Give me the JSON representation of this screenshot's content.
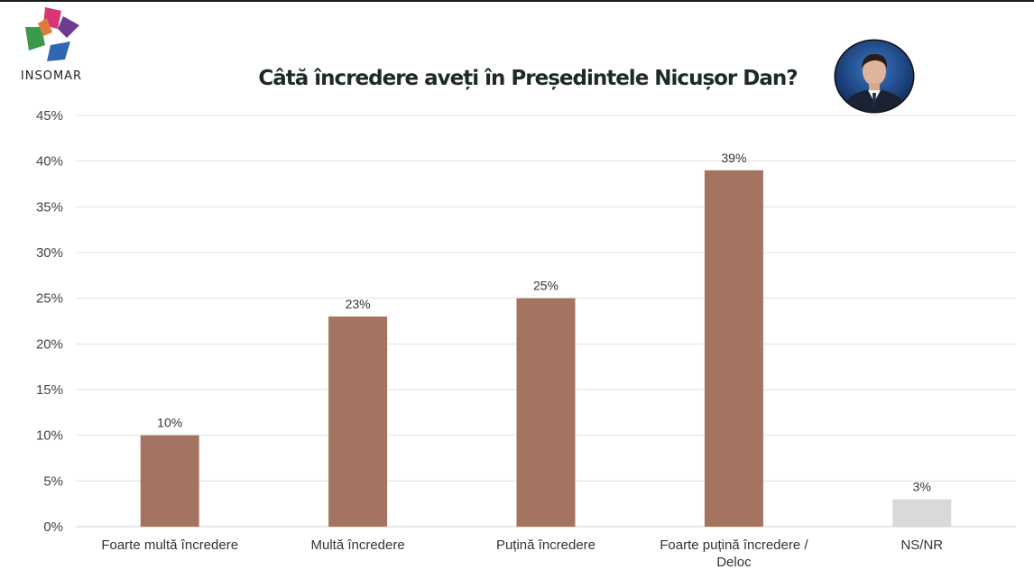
{
  "brand": {
    "name": "INSOMAR",
    "colors": [
      "#d6357a",
      "#6d3c8e",
      "#3a9a4a",
      "#2f67b2"
    ]
  },
  "avatar": {
    "icon": "person-portrait-icon"
  },
  "chart_data": {
    "type": "bar",
    "title": "Câtă încredere aveți în Președintele Nicușor Dan?",
    "xlabel": "",
    "ylabel": "",
    "ylim": [
      0,
      45
    ],
    "yticks": [
      "0%",
      "5%",
      "10%",
      "15%",
      "20%",
      "25%",
      "30%",
      "35%",
      "40%",
      "45%"
    ],
    "grid": true,
    "categories": [
      [
        "Foarte multă încredere"
      ],
      [
        "Multă încredere"
      ],
      [
        "Puțină încredere"
      ],
      [
        "Foarte puțină încredere /",
        "Deloc"
      ],
      [
        "NS/NR"
      ]
    ],
    "values": [
      10,
      23,
      25,
      39,
      3
    ],
    "data_labels": [
      "10%",
      "23%",
      "25%",
      "39%",
      "3%"
    ],
    "bar_colors": [
      "#a47461",
      "#a47461",
      "#a47461",
      "#a47461",
      "#d9d9d9"
    ]
  }
}
